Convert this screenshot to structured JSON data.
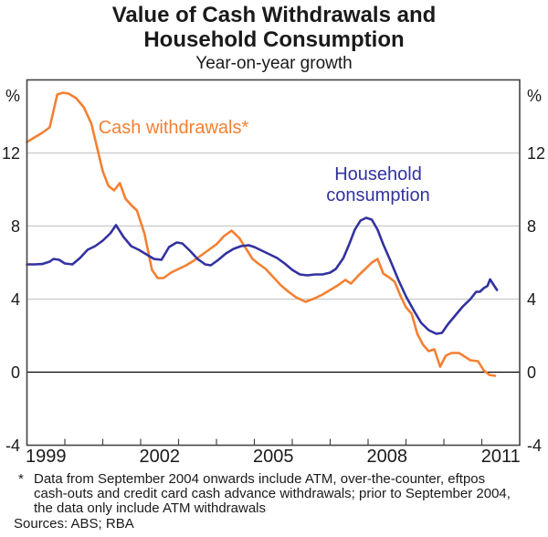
{
  "header": {
    "title_line1": "Value of Cash Withdrawals and",
    "title_line2": "Household Consumption",
    "subtitle": "Year-on-year growth"
  },
  "chart_data": {
    "type": "line",
    "title": "Value of Cash Withdrawals and Household Consumption",
    "subtitle": "Year-on-year growth",
    "y_axis": {
      "unit": "%",
      "ticks": [
        -4,
        0,
        4,
        8,
        12
      ],
      "gridlines_at": [
        4,
        8,
        12
      ],
      "zero_line": true,
      "ylim": [
        -4,
        16
      ]
    },
    "x_axis": {
      "start": 1999,
      "end": 2012,
      "tick_every": 1,
      "label_years": [
        1999,
        2002,
        2005,
        2008,
        2011
      ]
    },
    "colors": {
      "grid": "#c9c9c9",
      "zero_line": "#000000",
      "frame": "#454547",
      "cash": "#f48032",
      "household": "#3232a0"
    },
    "series": [
      {
        "name": "Cash withdrawals",
        "label": "Cash withdrawals*",
        "color": "#f48032",
        "points": [
          [
            1999.0,
            12.6
          ],
          [
            1999.2,
            12.85
          ],
          [
            1999.4,
            13.1
          ],
          [
            1999.6,
            13.4
          ],
          [
            1999.8,
            15.2
          ],
          [
            1999.95,
            15.3
          ],
          [
            2000.1,
            15.25
          ],
          [
            2000.3,
            15.0
          ],
          [
            2000.5,
            14.5
          ],
          [
            2000.7,
            13.6
          ],
          [
            2000.85,
            12.3
          ],
          [
            2001.0,
            11.0
          ],
          [
            2001.15,
            10.2
          ],
          [
            2001.3,
            9.95
          ],
          [
            2001.45,
            10.35
          ],
          [
            2001.6,
            9.5
          ],
          [
            2001.75,
            9.15
          ],
          [
            2001.9,
            8.85
          ],
          [
            2002.1,
            7.6
          ],
          [
            2002.3,
            5.6
          ],
          [
            2002.45,
            5.15
          ],
          [
            2002.6,
            5.15
          ],
          [
            2002.8,
            5.45
          ],
          [
            2003.0,
            5.65
          ],
          [
            2003.2,
            5.85
          ],
          [
            2003.4,
            6.1
          ],
          [
            2003.6,
            6.4
          ],
          [
            2003.8,
            6.7
          ],
          [
            2004.0,
            7.0
          ],
          [
            2004.2,
            7.45
          ],
          [
            2004.4,
            7.75
          ],
          [
            2004.6,
            7.35
          ],
          [
            2004.8,
            6.7
          ],
          [
            2004.95,
            6.2
          ],
          [
            2005.1,
            5.95
          ],
          [
            2005.3,
            5.65
          ],
          [
            2005.5,
            5.2
          ],
          [
            2005.7,
            4.75
          ],
          [
            2005.9,
            4.4
          ],
          [
            2006.1,
            4.1
          ],
          [
            2006.35,
            3.85
          ],
          [
            2006.6,
            4.05
          ],
          [
            2006.8,
            4.25
          ],
          [
            2007.0,
            4.5
          ],
          [
            2007.2,
            4.75
          ],
          [
            2007.4,
            5.05
          ],
          [
            2007.55,
            4.85
          ],
          [
            2007.75,
            5.3
          ],
          [
            2007.9,
            5.6
          ],
          [
            2008.1,
            6.0
          ],
          [
            2008.25,
            6.2
          ],
          [
            2008.4,
            5.4
          ],
          [
            2008.55,
            5.2
          ],
          [
            2008.7,
            4.95
          ],
          [
            2008.85,
            4.2
          ],
          [
            2009.0,
            3.55
          ],
          [
            2009.15,
            3.2
          ],
          [
            2009.3,
            2.1
          ],
          [
            2009.45,
            1.5
          ],
          [
            2009.6,
            1.15
          ],
          [
            2009.75,
            1.25
          ],
          [
            2009.9,
            0.3
          ],
          [
            2010.05,
            0.9
          ],
          [
            2010.2,
            1.05
          ],
          [
            2010.4,
            1.05
          ],
          [
            2010.55,
            0.85
          ],
          [
            2010.7,
            0.65
          ],
          [
            2010.9,
            0.6
          ],
          [
            2011.05,
            0.1
          ],
          [
            2011.2,
            -0.15
          ],
          [
            2011.35,
            -0.2
          ]
        ]
      },
      {
        "name": "Household consumption",
        "label_line1": "Household",
        "label_line2": "consumption",
        "color": "#3232a0",
        "points": [
          [
            1999.0,
            5.9
          ],
          [
            1999.2,
            5.9
          ],
          [
            1999.4,
            5.92
          ],
          [
            1999.6,
            6.05
          ],
          [
            1999.7,
            6.2
          ],
          [
            1999.85,
            6.15
          ],
          [
            2000.0,
            5.95
          ],
          [
            2000.2,
            5.9
          ],
          [
            2000.4,
            6.25
          ],
          [
            2000.6,
            6.7
          ],
          [
            2000.8,
            6.9
          ],
          [
            2001.0,
            7.2
          ],
          [
            2001.2,
            7.6
          ],
          [
            2001.35,
            8.05
          ],
          [
            2001.55,
            7.4
          ],
          [
            2001.75,
            6.9
          ],
          [
            2001.95,
            6.7
          ],
          [
            2002.15,
            6.45
          ],
          [
            2002.35,
            6.2
          ],
          [
            2002.55,
            6.15
          ],
          [
            2002.75,
            6.85
          ],
          [
            2002.95,
            7.1
          ],
          [
            2003.1,
            7.05
          ],
          [
            2003.3,
            6.65
          ],
          [
            2003.5,
            6.2
          ],
          [
            2003.7,
            5.9
          ],
          [
            2003.85,
            5.85
          ],
          [
            2004.05,
            6.15
          ],
          [
            2004.25,
            6.5
          ],
          [
            2004.45,
            6.75
          ],
          [
            2004.65,
            6.9
          ],
          [
            2004.85,
            6.95
          ],
          [
            2005.0,
            6.85
          ],
          [
            2005.2,
            6.65
          ],
          [
            2005.4,
            6.45
          ],
          [
            2005.6,
            6.25
          ],
          [
            2005.8,
            5.95
          ],
          [
            2006.0,
            5.6
          ],
          [
            2006.2,
            5.35
          ],
          [
            2006.4,
            5.3
          ],
          [
            2006.6,
            5.35
          ],
          [
            2006.8,
            5.35
          ],
          [
            2007.0,
            5.45
          ],
          [
            2007.15,
            5.65
          ],
          [
            2007.35,
            6.25
          ],
          [
            2007.5,
            7.0
          ],
          [
            2007.65,
            7.8
          ],
          [
            2007.8,
            8.3
          ],
          [
            2007.95,
            8.45
          ],
          [
            2008.1,
            8.35
          ],
          [
            2008.25,
            7.8
          ],
          [
            2008.4,
            7.0
          ],
          [
            2008.6,
            6.05
          ],
          [
            2008.8,
            5.05
          ],
          [
            2009.0,
            4.15
          ],
          [
            2009.2,
            3.4
          ],
          [
            2009.4,
            2.7
          ],
          [
            2009.6,
            2.3
          ],
          [
            2009.8,
            2.1
          ],
          [
            2009.95,
            2.15
          ],
          [
            2010.1,
            2.6
          ],
          [
            2010.3,
            3.1
          ],
          [
            2010.5,
            3.6
          ],
          [
            2010.7,
            4.0
          ],
          [
            2010.85,
            4.4
          ],
          [
            2010.95,
            4.4
          ],
          [
            2011.05,
            4.6
          ],
          [
            2011.15,
            4.72
          ],
          [
            2011.22,
            5.08
          ],
          [
            2011.4,
            4.5
          ]
        ]
      }
    ]
  },
  "annotations": {
    "cash_label": "Cash withdrawals*",
    "household_label_line1": "Household",
    "household_label_line2": "consumption"
  },
  "footnote": {
    "marker": "*",
    "line1": "Data from September 2004 onwards include ATM, over-the-counter, eftpos",
    "line2": "cash-outs and credit card cash advance withdrawals; prior to September 2004,",
    "line3": "the data only include ATM withdrawals",
    "sources": "Sources: ABS; RBA"
  }
}
